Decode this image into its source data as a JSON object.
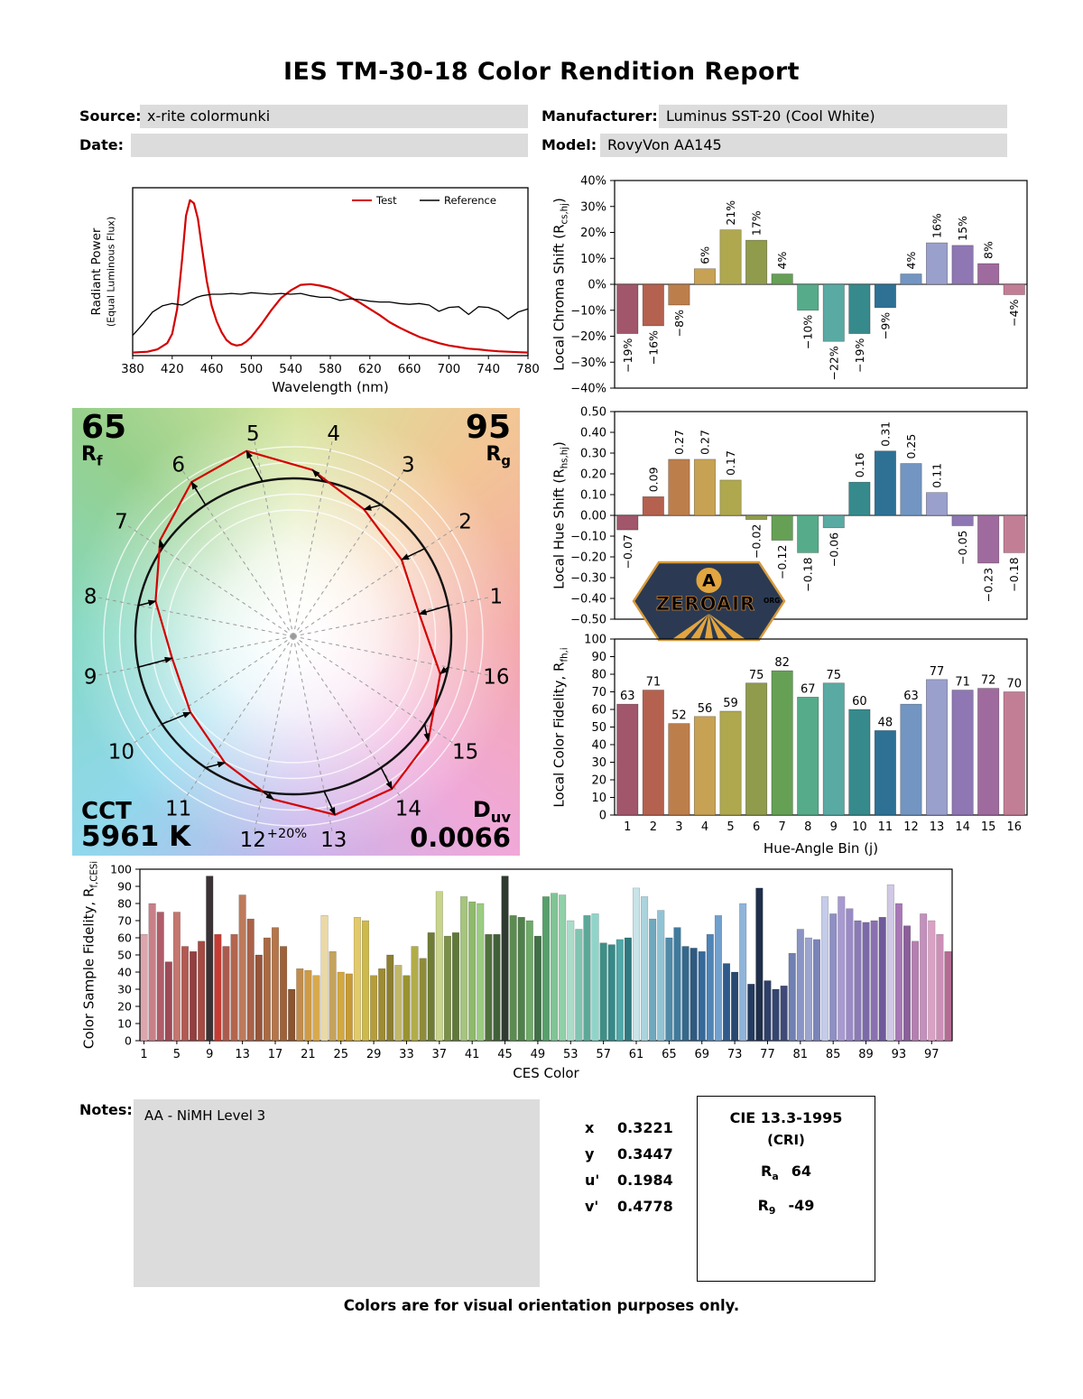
{
  "title": "IES TM-30-18 Color Rendition Report",
  "header": {
    "source_label": "Source:",
    "source_value": "x-rite colormunki",
    "date_label": "Date:",
    "date_value": "",
    "manufacturer_label": "Manufacturer:",
    "manufacturer_value": "Luminus SST-20 (Cool White)",
    "model_label": "Model:",
    "model_value": "RovyVon AA145"
  },
  "bin_colors": [
    "#a1566b",
    "#b4614f",
    "#bc7e4b",
    "#c8a254",
    "#b0a84f",
    "#909b4c",
    "#65a055",
    "#55ab8a",
    "#5aaaa4",
    "#378a8c",
    "#2e7195",
    "#7295c2",
    "#9aa0cc",
    "#8e77b3",
    "#9f6b9e",
    "#c27e95"
  ],
  "vector_graphic": {
    "rf_value": "65",
    "rf_pre": "R",
    "rf_sub": "f",
    "rg_value": "95",
    "rg_pre": "R",
    "rg_sub": "g",
    "cct_label": "CCT",
    "cct_value": "5961 K",
    "duv_pre": "D",
    "duv_sub": "uv",
    "duv_value": "0.0066",
    "ring_label": "+20%",
    "bin_labels": [
      "1",
      "2",
      "3",
      "4",
      "5",
      "6",
      "7",
      "8",
      "9",
      "10",
      "11",
      "12",
      "13",
      "14",
      "15",
      "16"
    ],
    "test_radii": [
      0.81,
      0.84,
      0.92,
      1.06,
      1.21,
      1.17,
      1.04,
      0.9,
      0.78,
      0.81,
      0.91,
      1.04,
      1.16,
      1.15,
      1.08,
      0.96
    ],
    "hue_shifts": [
      -0.07,
      0.09,
      0.27,
      0.27,
      0.17,
      -0.02,
      -0.12,
      -0.18,
      -0.06,
      0.16,
      0.31,
      0.25,
      0.11,
      -0.05,
      -0.23,
      -0.18
    ],
    "bg_colors": [
      "#d6e49c",
      "#f2c695",
      "#f4a8a8",
      "#f0a8d8",
      "#c8b4ec",
      "#90d8ec",
      "#84d8c4",
      "#96d08c"
    ]
  },
  "logo": {
    "text": "ZEROAIR",
    "org": "ORG",
    "monogram": "A"
  },
  "chart_data": [
    {
      "id": "spd",
      "type": "line",
      "xlabel": "Wavelength (nm)",
      "ylabel_line1": "Radiant Power",
      "ylabel_line2": "(Equal Luminous Flux)",
      "xlim": [
        380,
        780
      ],
      "ylim": [
        0,
        1.08
      ],
      "x_ticks": [
        380,
        420,
        460,
        500,
        540,
        580,
        620,
        660,
        700,
        740,
        780
      ],
      "series": [
        {
          "name": "Test",
          "color": "#d40000",
          "width": 2.2,
          "points": [
            [
              380,
              0.02
            ],
            [
              395,
              0.025
            ],
            [
              405,
              0.04
            ],
            [
              415,
              0.08
            ],
            [
              420,
              0.14
            ],
            [
              425,
              0.3
            ],
            [
              430,
              0.62
            ],
            [
              434,
              0.9
            ],
            [
              438,
              1.0
            ],
            [
              442,
              0.98
            ],
            [
              446,
              0.88
            ],
            [
              450,
              0.7
            ],
            [
              455,
              0.48
            ],
            [
              460,
              0.32
            ],
            [
              465,
              0.22
            ],
            [
              470,
              0.15
            ],
            [
              475,
              0.1
            ],
            [
              480,
              0.075
            ],
            [
              485,
              0.065
            ],
            [
              490,
              0.07
            ],
            [
              495,
              0.09
            ],
            [
              500,
              0.12
            ],
            [
              510,
              0.2
            ],
            [
              520,
              0.29
            ],
            [
              530,
              0.37
            ],
            [
              540,
              0.42
            ],
            [
              550,
              0.455
            ],
            [
              560,
              0.46
            ],
            [
              570,
              0.45
            ],
            [
              580,
              0.435
            ],
            [
              590,
              0.41
            ],
            [
              600,
              0.375
            ],
            [
              610,
              0.34
            ],
            [
              620,
              0.3
            ],
            [
              630,
              0.26
            ],
            [
              640,
              0.215
            ],
            [
              650,
              0.18
            ],
            [
              660,
              0.15
            ],
            [
              670,
              0.12
            ],
            [
              680,
              0.1
            ],
            [
              690,
              0.08
            ],
            [
              700,
              0.065
            ],
            [
              710,
              0.055
            ],
            [
              720,
              0.045
            ],
            [
              730,
              0.04
            ],
            [
              740,
              0.033
            ],
            [
              750,
              0.028
            ],
            [
              760,
              0.025
            ],
            [
              770,
              0.022
            ],
            [
              780,
              0.02
            ]
          ]
        },
        {
          "name": "Reference",
          "color": "#000000",
          "width": 1.3,
          "points": [
            [
              380,
              0.13
            ],
            [
              390,
              0.2
            ],
            [
              400,
              0.28
            ],
            [
              410,
              0.32
            ],
            [
              420,
              0.335
            ],
            [
              430,
              0.325
            ],
            [
              435,
              0.34
            ],
            [
              440,
              0.36
            ],
            [
              445,
              0.375
            ],
            [
              450,
              0.385
            ],
            [
              460,
              0.395
            ],
            [
              470,
              0.395
            ],
            [
              480,
              0.4
            ],
            [
              490,
              0.395
            ],
            [
              500,
              0.405
            ],
            [
              510,
              0.4
            ],
            [
              520,
              0.395
            ],
            [
              530,
              0.4
            ],
            [
              540,
              0.395
            ],
            [
              550,
              0.4
            ],
            [
              560,
              0.385
            ],
            [
              570,
              0.375
            ],
            [
              580,
              0.375
            ],
            [
              590,
              0.355
            ],
            [
              600,
              0.365
            ],
            [
              610,
              0.36
            ],
            [
              620,
              0.35
            ],
            [
              630,
              0.345
            ],
            [
              640,
              0.345
            ],
            [
              650,
              0.335
            ],
            [
              660,
              0.33
            ],
            [
              670,
              0.335
            ],
            [
              680,
              0.325
            ],
            [
              690,
              0.285
            ],
            [
              700,
              0.31
            ],
            [
              710,
              0.315
            ],
            [
              720,
              0.265
            ],
            [
              730,
              0.315
            ],
            [
              740,
              0.31
            ],
            [
              750,
              0.285
            ],
            [
              760,
              0.235
            ],
            [
              770,
              0.28
            ],
            [
              780,
              0.3
            ]
          ]
        }
      ]
    },
    {
      "id": "chroma_shift",
      "type": "bar",
      "ylabel_pre": "Local Chroma Shift (R",
      "ylabel_sub": "cs,hj",
      "ylabel_post": ")",
      "ylim": [
        -40,
        40
      ],
      "ytick_values": [
        40,
        30,
        20,
        10,
        0,
        -10,
        -20,
        -30,
        -40
      ],
      "ytick_labels": [
        "40%",
        "30%",
        "20%",
        "10%",
        "0%",
        "−10%",
        "−20%",
        "−30%",
        "−40%"
      ],
      "categories": [
        "1",
        "2",
        "3",
        "4",
        "5",
        "6",
        "7",
        "8",
        "9",
        "10",
        "11",
        "12",
        "13",
        "14",
        "15",
        "16"
      ],
      "values": [
        -19,
        -16,
        -8,
        6,
        21,
        17,
        4,
        -10,
        -22,
        -19,
        -9,
        4,
        16,
        15,
        8,
        -4
      ],
      "labels": [
        "−19%",
        "−16%",
        "−8%",
        "6%",
        "21%",
        "17%",
        "4%",
        "−10%",
        "−22%",
        "−19%",
        "−9%",
        "4%",
        "16%",
        "15%",
        "8%",
        "−4%"
      ]
    },
    {
      "id": "hue_shift",
      "type": "bar",
      "ylabel_pre": "Local Hue Shift (R",
      "ylabel_sub": "hs,hj",
      "ylabel_post": ")",
      "ylim": [
        -0.5,
        0.5
      ],
      "ytick_values": [
        0.5,
        0.4,
        0.3,
        0.2,
        0.1,
        0,
        -0.1,
        -0.2,
        -0.3,
        -0.4,
        -0.5
      ],
      "ytick_labels": [
        "0.50",
        "0.40",
        "0.30",
        "0.20",
        "0.10",
        "0.00",
        "−0.10",
        "−0.20",
        "−0.30",
        "−0.40",
        "−0.50"
      ],
      "categories": [
        "1",
        "2",
        "3",
        "4",
        "5",
        "6",
        "7",
        "8",
        "9",
        "10",
        "11",
        "12",
        "13",
        "14",
        "15",
        "16"
      ],
      "values": [
        -0.07,
        0.09,
        0.27,
        0.27,
        0.17,
        -0.02,
        -0.12,
        -0.18,
        -0.06,
        0.16,
        0.31,
        0.25,
        0.11,
        -0.05,
        -0.23,
        -0.18
      ],
      "labels": [
        "−0.07",
        "0.09",
        "0.27",
        "0.27",
        "0.17",
        "−0.02",
        "−0.12",
        "−0.18",
        "−0.06",
        "0.16",
        "0.31",
        "0.25",
        "0.11",
        "−0.05",
        "−0.23",
        "−0.18"
      ]
    },
    {
      "id": "fidelity",
      "type": "bar",
      "xlabel": "Hue-Angle Bin (j)",
      "ylabel_pre": "Local Color Fidelity, R",
      "ylabel_sub": "fh,i",
      "ylabel_post": "",
      "ylim": [
        0,
        100
      ],
      "ytick_values": [
        0,
        10,
        20,
        30,
        40,
        50,
        60,
        70,
        80,
        90,
        100
      ],
      "categories": [
        "1",
        "2",
        "3",
        "4",
        "5",
        "6",
        "7",
        "8",
        "9",
        "10",
        "11",
        "12",
        "13",
        "14",
        "15",
        "16"
      ],
      "values": [
        63,
        71,
        52,
        56,
        59,
        75,
        82,
        67,
        75,
        60,
        48,
        63,
        77,
        71,
        72,
        70
      ],
      "labels": [
        "63",
        "71",
        "52",
        "56",
        "59",
        "75",
        "82",
        "67",
        "75",
        "60",
        "48",
        "63",
        "77",
        "71",
        "72",
        "70"
      ]
    },
    {
      "id": "ces",
      "type": "bar",
      "xlabel": "CES Color",
      "ylabel_pre": "Color Sample Fidelity, R",
      "ylabel_sub": "f,CESi",
      "ylabel_post": "",
      "ylim": [
        0,
        100
      ],
      "ytick_values": [
        0,
        10,
        20,
        30,
        40,
        50,
        60,
        70,
        80,
        90,
        100
      ],
      "xtick_labels": [
        1,
        5,
        9,
        13,
        17,
        21,
        25,
        29,
        33,
        37,
        41,
        45,
        49,
        53,
        57,
        61,
        65,
        69,
        73,
        77,
        81,
        85,
        89,
        93,
        97
      ],
      "values": [
        62,
        80,
        75,
        46,
        75,
        55,
        52,
        58,
        96,
        62,
        55,
        62,
        85,
        71,
        50,
        60,
        66,
        55,
        30,
        42,
        41,
        38,
        73,
        52,
        40,
        39,
        72,
        70,
        38,
        42,
        50,
        44,
        38,
        55,
        48,
        63,
        87,
        61,
        63,
        84,
        81,
        80,
        62,
        62,
        96,
        73,
        72,
        70,
        61,
        84,
        86,
        85,
        70,
        65,
        73,
        74,
        57,
        56,
        59,
        60,
        89,
        84,
        71,
        76,
        60,
        66,
        55,
        54,
        52,
        62,
        73,
        45,
        40,
        80,
        33,
        89,
        35,
        30,
        32,
        51,
        65,
        60,
        59,
        84,
        74,
        84,
        77,
        70,
        69,
        70,
        72,
        91,
        80,
        67,
        58,
        74,
        70,
        62,
        52
      ],
      "colors": [
        "#dca6ad",
        "#c87f88",
        "#b05d6a",
        "#9e4a57",
        "#c4766f",
        "#b35a52",
        "#933f40",
        "#a44b42",
        "#3a3234",
        "#c53b32",
        "#ab5b4e",
        "#b4654d",
        "#bd7a5c",
        "#aa6248",
        "#96553b",
        "#a96a43",
        "#b5764a",
        "#9d6239",
        "#8a5530",
        "#c08d4e",
        "#cf9a45",
        "#d9a94e",
        "#ead9a7",
        "#c4a35c",
        "#d3a83f",
        "#c79a36",
        "#e3c96a",
        "#cdb94c",
        "#b59d3b",
        "#9d8b35",
        "#8c7f31",
        "#c1b76a",
        "#99922f",
        "#b2ad49",
        "#8e8c3a",
        "#6f7c36",
        "#c8d38c",
        "#7b9047",
        "#60793b",
        "#a6c47e",
        "#8fba6b",
        "#9bcc81",
        "#50703c",
        "#406037",
        "#2f3a31",
        "#5b8b51",
        "#50804b",
        "#70aa69",
        "#407046",
        "#57a06b",
        "#80c495",
        "#90d0a9",
        "#a9ddc9",
        "#80c4b1",
        "#5ba899",
        "#90d4c9",
        "#3f8f86",
        "#368a88",
        "#50a8a8",
        "#2f7a81",
        "#c9e4e9",
        "#a9d4de",
        "#70a8bd",
        "#90c4d5",
        "#4f8aa9",
        "#3f7a9d",
        "#35688b",
        "#2f5a80",
        "#356a9b",
        "#4f84b6",
        "#70a0cd",
        "#2f5a8b",
        "#27486f",
        "#8fb4da",
        "#243b5f",
        "#1f2f4b",
        "#2f3f67",
        "#35456f",
        "#3f4a78",
        "#6f80b1",
        "#8a94c5",
        "#9aa4cd",
        "#7a84b9",
        "#c4cce9",
        "#8f8fc5",
        "#a89ad1",
        "#9a8ac5",
        "#8a7ab6",
        "#7a6aa9",
        "#8a70b1",
        "#6f5a9a",
        "#d0c8e5",
        "#a878b6",
        "#8a5f9a",
        "#b580b1",
        "#c490bd",
        "#daa1c5",
        "#cc90b6",
        "#b56b93"
      ]
    }
  ],
  "notes": {
    "label": "Notes:",
    "value": "AA - NiMH Level 3"
  },
  "chromaticity": [
    {
      "label": "x",
      "value": "0.3221"
    },
    {
      "label": "y",
      "value": "0.3447"
    },
    {
      "label": "u'",
      "value": "0.1984"
    },
    {
      "label": "v'",
      "value": "0.4778"
    }
  ],
  "cie": {
    "title": "CIE 13.3-1995",
    "subtitle": "(CRI)",
    "ra_pre": "R",
    "ra_sub": "a",
    "ra_value": "64",
    "r9_pre": "R",
    "r9_sub": "9",
    "r9_value": "-49"
  },
  "footer": "Colors are for visual orientation purposes only."
}
